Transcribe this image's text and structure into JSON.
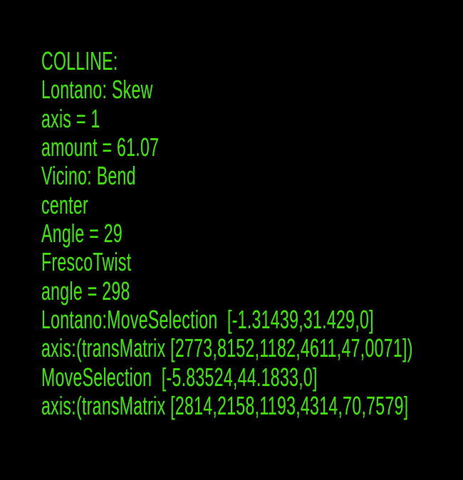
{
  "terminal": {
    "background_color": "#000000",
    "text_color": "#43df0c",
    "lines": [
      "COLLINE:",
      "Lontano: Skew",
      "axis = 1",
      "amount = 61.07",
      "Vicino: Bend",
      "center",
      "Angle = 29",
      "FrescoTwist",
      "angle = 298",
      "Lontano:MoveSelection  [-1.31439,31.429,0]",
      "axis:(transMatrix [2773,8152,1182,4611,47,0071])",
      "MoveSelection  [-5.83524,44.1833,0]",
      "axis:(transMatrix [2814,2158,1193,4314,70,7579]"
    ]
  }
}
